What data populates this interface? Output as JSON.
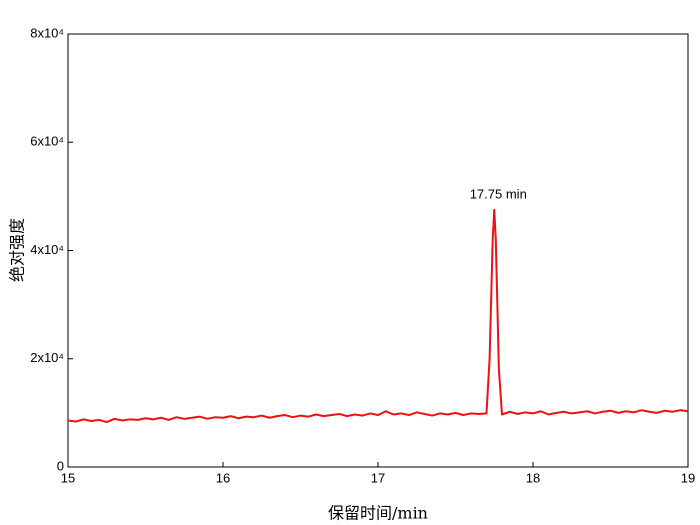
{
  "chart_data": {
    "type": "line",
    "xlabel": "保留时间/min",
    "ylabel": "绝对强度",
    "annotation": {
      "text": "17.75 min",
      "x": 17.75,
      "y": 47500
    },
    "x": [
      15.0,
      15.05,
      15.1,
      15.15,
      15.2,
      15.25,
      15.3,
      15.35,
      15.4,
      15.45,
      15.5,
      15.55,
      15.6,
      15.65,
      15.7,
      15.75,
      15.8,
      15.85,
      15.9,
      15.95,
      16.0,
      16.05,
      16.1,
      16.15,
      16.2,
      16.25,
      16.3,
      16.35,
      16.4,
      16.45,
      16.5,
      16.55,
      16.6,
      16.65,
      16.7,
      16.75,
      16.8,
      16.85,
      16.9,
      16.95,
      17.0,
      17.05,
      17.1,
      17.15,
      17.2,
      17.25,
      17.3,
      17.35,
      17.4,
      17.45,
      17.5,
      17.55,
      17.6,
      17.65,
      17.7,
      17.72,
      17.74,
      17.75,
      17.76,
      17.78,
      17.8,
      17.85,
      17.9,
      17.95,
      18.0,
      18.05,
      18.1,
      18.15,
      18.2,
      18.25,
      18.3,
      18.35,
      18.4,
      18.45,
      18.5,
      18.55,
      18.6,
      18.65,
      18.7,
      18.75,
      18.8,
      18.85,
      18.9,
      18.95,
      19.0
    ],
    "series": [
      {
        "color": "#ee1111",
        "values": [
          8600,
          8400,
          8800,
          8500,
          8700,
          8300,
          8900,
          8600,
          8800,
          8700,
          9000,
          8800,
          9100,
          8700,
          9200,
          8900,
          9100,
          9300,
          8900,
          9200,
          9100,
          9400,
          9000,
          9300,
          9200,
          9500,
          9100,
          9400,
          9600,
          9200,
          9500,
          9300,
          9700,
          9400,
          9600,
          9800,
          9400,
          9700,
          9500,
          9900,
          9600,
          10300,
          9700,
          9900,
          9600,
          10100,
          9800,
          9500,
          9900,
          9700,
          10000,
          9600,
          9900,
          9800,
          9900,
          20000,
          42000,
          47500,
          42000,
          18000,
          9700,
          10200,
          9800,
          10100,
          9900,
          10300,
          9700,
          10000,
          10200,
          9900,
          10100,
          10300,
          9900,
          10200,
          10400,
          10000,
          10300,
          10100,
          10500,
          10200,
          10000,
          10400,
          10200,
          10500,
          10300
        ]
      }
    ],
    "xlim": [
      15,
      19
    ],
    "xticks": [
      15,
      16,
      17,
      18,
      19
    ],
    "ylim": [
      0,
      80000
    ],
    "yticks": [
      0,
      {
        "value": 20000,
        "label": "2x10⁴"
      },
      {
        "value": 40000,
        "label": "4x10⁴"
      },
      {
        "value": 60000,
        "label": "6x10⁴"
      },
      {
        "value": 80000,
        "label": "8x10⁴"
      }
    ]
  }
}
